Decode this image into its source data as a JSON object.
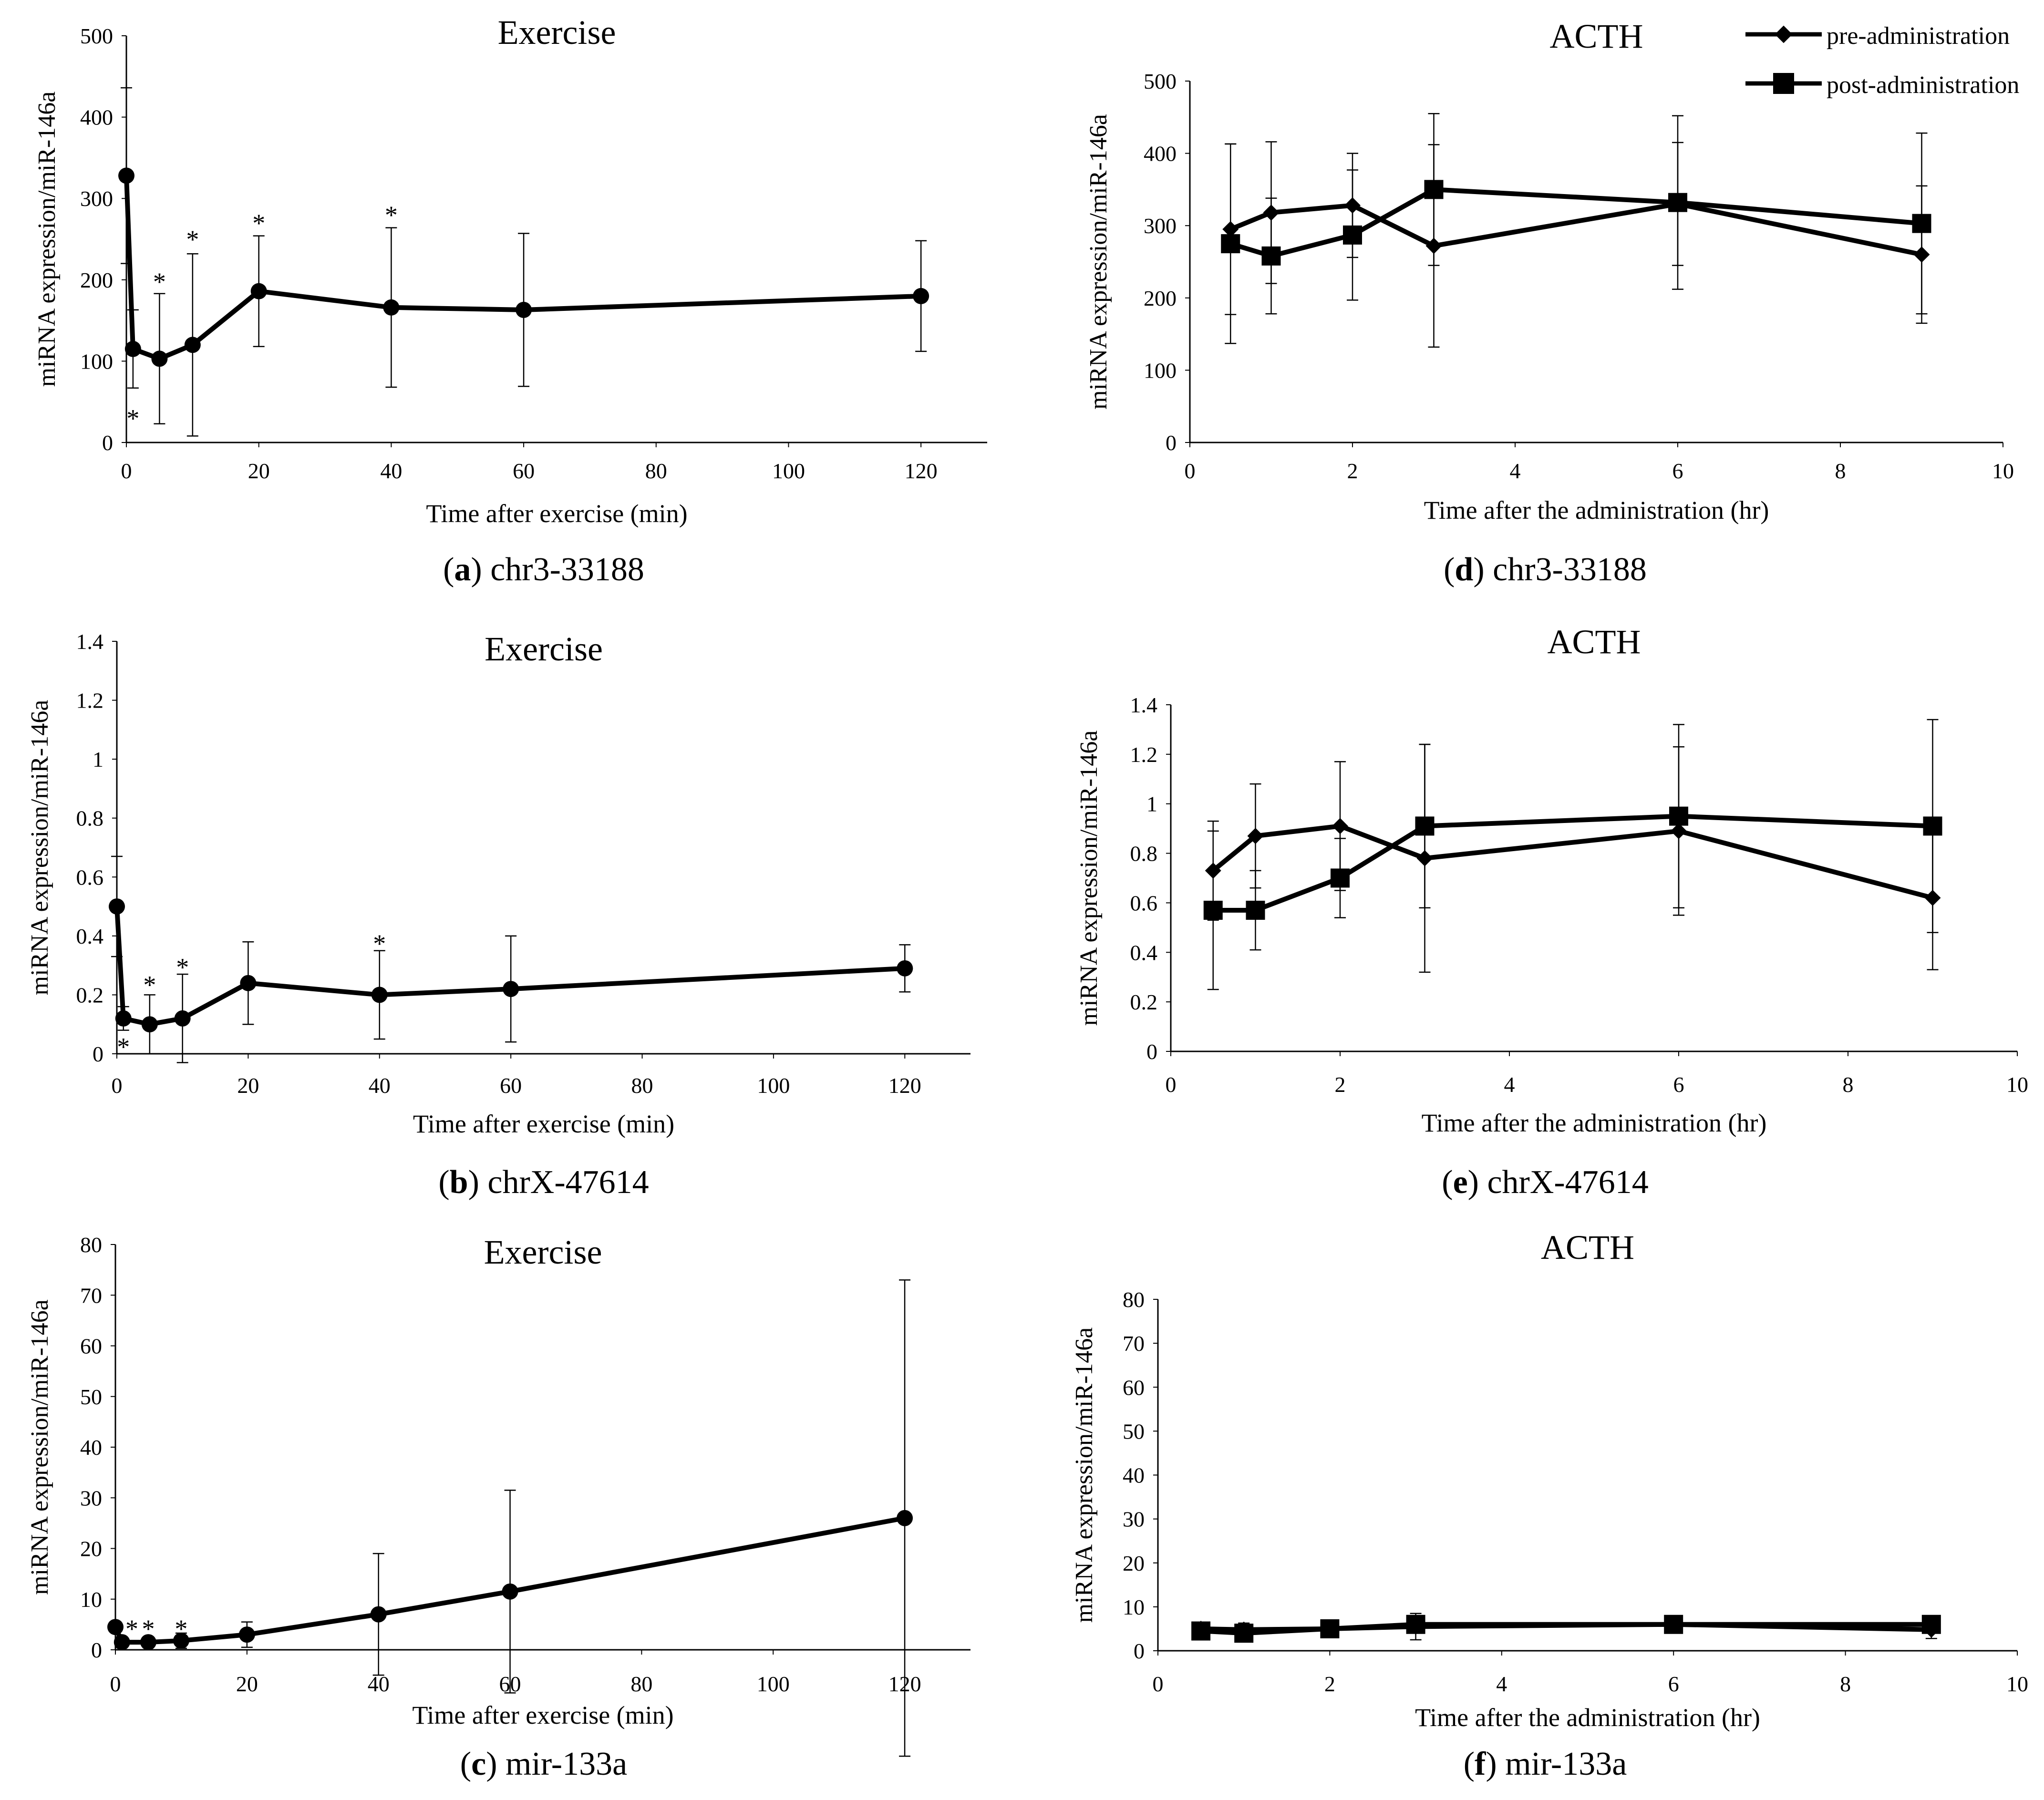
{
  "legend": {
    "pre_label": "pre-administration",
    "post_label": "post-administration"
  },
  "chart_data": [
    {
      "panel": "a",
      "type": "line",
      "title": "Exercise",
      "caption_letter": "a",
      "caption_text": "chr3-33188",
      "xlabel": "Time after exercise (min)",
      "ylabel": "miRNA expression/miR-146a",
      "xlim": [
        0,
        130
      ],
      "ylim": [
        0,
        500
      ],
      "x_ticks": [
        0,
        20,
        40,
        60,
        80,
        100,
        120
      ],
      "y_ticks": [
        0,
        100,
        200,
        300,
        400,
        500
      ],
      "y_tick_labels": [
        "0",
        "100",
        "200",
        "300",
        "400",
        "500"
      ],
      "series": [
        {
          "name": "exercise",
          "marker": "circle",
          "x": [
            0,
            1,
            5,
            10,
            20,
            40,
            60,
            120
          ],
          "values": [
            328,
            115,
            103,
            120,
            186,
            166,
            163,
            180
          ],
          "error": [
            108,
            48,
            80,
            112,
            68,
            98,
            94,
            68
          ]
        }
      ],
      "annotations": [
        {
          "text": "*",
          "x": 1,
          "y": 32
        },
        {
          "text": "*",
          "x": 5,
          "y": 200
        },
        {
          "text": "*",
          "x": 10,
          "y": 252
        },
        {
          "text": "*",
          "x": 20,
          "y": 272
        },
        {
          "text": "*",
          "x": 40,
          "y": 282
        }
      ]
    },
    {
      "panel": "b",
      "type": "line",
      "title": "Exercise",
      "caption_letter": "b",
      "caption_text": "chrX-47614",
      "xlabel": "Time after exercise (min)",
      "ylabel": "miRNA expression/miR-146a",
      "xlim": [
        0,
        130
      ],
      "ylim": [
        0,
        1.4
      ],
      "x_ticks": [
        0,
        20,
        40,
        60,
        80,
        100,
        120
      ],
      "y_ticks": [
        0,
        0.2,
        0.4,
        0.6,
        0.8,
        1.0,
        1.2,
        1.4
      ],
      "y_tick_labels": [
        "0",
        "0.2",
        "0.4",
        "0.6",
        "0.8",
        "1",
        "1.2",
        "1.4"
      ],
      "series": [
        {
          "name": "exercise",
          "marker": "circle",
          "x": [
            0,
            1,
            5,
            10,
            20,
            40,
            60,
            120
          ],
          "values": [
            0.5,
            0.12,
            0.1,
            0.12,
            0.24,
            0.2,
            0.22,
            0.29
          ],
          "error": [
            0.17,
            0.04,
            0.1,
            0.15,
            0.14,
            0.15,
            0.18,
            0.08
          ]
        }
      ],
      "annotations": [
        {
          "text": "*",
          "x": 1,
          "y": 0.03
        },
        {
          "text": "*",
          "x": 5,
          "y": 0.24
        },
        {
          "text": "*",
          "x": 10,
          "y": 0.3
        },
        {
          "text": "*",
          "x": 40,
          "y": 0.38
        }
      ]
    },
    {
      "panel": "c",
      "type": "line",
      "title": "Exercise",
      "caption_letter": "c",
      "caption_text": "mir-133a",
      "xlabel": "Time after exercise (min)",
      "ylabel": "miRNA expression/miR-146a",
      "xlim": [
        0,
        130
      ],
      "ylim": [
        0,
        80
      ],
      "x_ticks": [
        0,
        20,
        40,
        60,
        80,
        100,
        120
      ],
      "y_ticks": [
        0,
        10,
        20,
        30,
        40,
        50,
        60,
        70,
        80
      ],
      "y_tick_labels": [
        "0",
        "10",
        "20",
        "30",
        "40",
        "50",
        "60",
        "70",
        "80"
      ],
      "series": [
        {
          "name": "exercise",
          "marker": "circle",
          "x": [
            0,
            1,
            5,
            10,
            20,
            40,
            60,
            120
          ],
          "values": [
            4.5,
            1.5,
            1.5,
            1.8,
            3.0,
            7.0,
            11.5,
            26.0
          ],
          "error": [
            0,
            0,
            0,
            1.5,
            2.5,
            12.0,
            20.0,
            47.0
          ]
        }
      ],
      "annotations": [
        {
          "text": "*",
          "x": 2.5,
          "y": 4.5
        },
        {
          "text": "*",
          "x": 5,
          "y": 4.5
        },
        {
          "text": "*",
          "x": 10,
          "y": 4.5
        }
      ]
    },
    {
      "panel": "d",
      "type": "line",
      "title": "ACTH",
      "caption_letter": "d",
      "caption_text": "chr3-33188",
      "xlabel": "Time after the administration (hr)",
      "ylabel": "miRNA expression/miR-146a",
      "xlim": [
        0,
        10
      ],
      "ylim": [
        0,
        500
      ],
      "x_ticks": [
        0,
        2,
        4,
        6,
        8,
        10
      ],
      "y_ticks": [
        0,
        100,
        200,
        300,
        400,
        500
      ],
      "y_tick_labels": [
        "0",
        "100",
        "200",
        "300",
        "400",
        "500"
      ],
      "series": [
        {
          "name": "pre-administration",
          "marker": "diamond",
          "x": [
            0.5,
            1,
            2,
            3,
            6,
            9
          ],
          "values": [
            295,
            318,
            328,
            272,
            330,
            260
          ],
          "error": [
            118,
            98,
            72,
            140,
            85,
            95
          ]
        },
        {
          "name": "post-administration",
          "marker": "square",
          "x": [
            0.5,
            1,
            2,
            3,
            6,
            9
          ],
          "values": [
            275,
            258,
            287,
            350,
            332,
            303
          ],
          "error": [
            138,
            80,
            90,
            105,
            120,
            125
          ]
        }
      ],
      "annotations": []
    },
    {
      "panel": "e",
      "type": "line",
      "title": "ACTH",
      "caption_letter": "e",
      "caption_text": "chrX-47614",
      "xlabel": "Time after the administration (hr)",
      "ylabel": "miRNA expression/miR-146a",
      "xlim": [
        0,
        10
      ],
      "ylim": [
        0,
        1.4
      ],
      "x_ticks": [
        0,
        2,
        4,
        6,
        8,
        10
      ],
      "y_ticks": [
        0,
        0.2,
        0.4,
        0.6,
        0.8,
        1.0,
        1.2,
        1.4
      ],
      "y_tick_labels": [
        "0",
        "0.2",
        "0.4",
        "0.6",
        "0.8",
        "1",
        "1.2",
        "1.4"
      ],
      "series": [
        {
          "name": "pre-administration",
          "marker": "diamond",
          "x": [
            0.5,
            1,
            2,
            3,
            6,
            9
          ],
          "values": [
            0.73,
            0.87,
            0.91,
            0.78,
            0.89,
            0.62
          ],
          "error": [
            0.2,
            0.21,
            0.26,
            0.46,
            0.34,
            0.29
          ]
        },
        {
          "name": "post-administration",
          "marker": "square",
          "x": [
            0.5,
            1,
            2,
            3,
            6,
            9
          ],
          "values": [
            0.57,
            0.57,
            0.7,
            0.91,
            0.95,
            0.91
          ],
          "error": [
            0.32,
            0.16,
            0.16,
            0.33,
            0.37,
            0.43
          ]
        }
      ],
      "annotations": []
    },
    {
      "panel": "f",
      "type": "line",
      "title": "ACTH",
      "caption_letter": "f",
      "caption_text": "mir-133a",
      "xlabel": "Time after the administration (hr)",
      "ylabel": "miRNA expression/miR-146a",
      "xlim": [
        0,
        10
      ],
      "ylim": [
        0,
        80
      ],
      "x_ticks": [
        0,
        2,
        4,
        6,
        8,
        10
      ],
      "y_ticks": [
        0,
        10,
        20,
        30,
        40,
        50,
        60,
        70,
        80
      ],
      "y_tick_labels": [
        "0",
        "10",
        "20",
        "30",
        "40",
        "50",
        "60",
        "70",
        "80"
      ],
      "series": [
        {
          "name": "pre-administration",
          "marker": "diamond",
          "x": [
            0.5,
            1,
            2,
            3,
            6,
            9
          ],
          "values": [
            5.0,
            4.8,
            5.0,
            5.5,
            6.0,
            4.8
          ],
          "error": [
            1.5,
            1.5,
            1.0,
            3.0,
            1.0,
            2.0
          ]
        },
        {
          "name": "post-administration",
          "marker": "square",
          "x": [
            0.5,
            1,
            2,
            3,
            6,
            9
          ],
          "values": [
            4.5,
            4.0,
            5.0,
            6.0,
            6.0,
            6.0
          ],
          "error": [
            1.5,
            1.0,
            1.0,
            2.0,
            1.0,
            1.5
          ]
        }
      ],
      "annotations": []
    }
  ]
}
